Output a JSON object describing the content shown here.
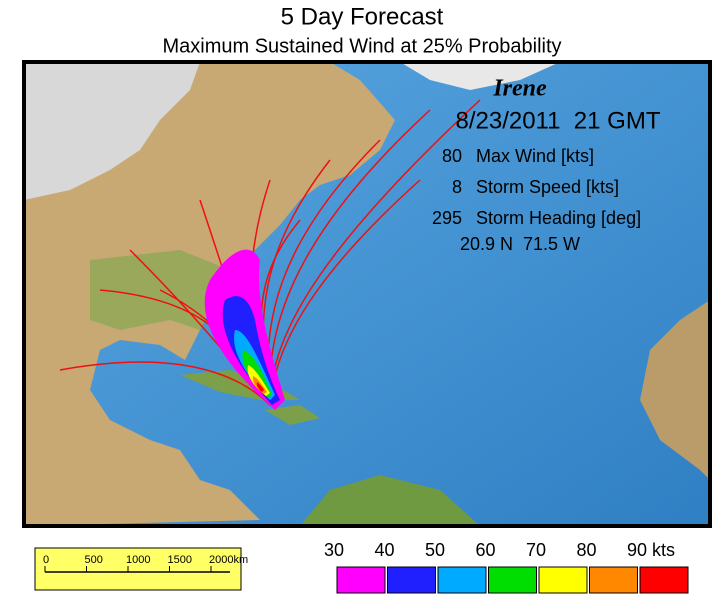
{
  "header": {
    "title": "5 Day Forecast",
    "subtitle": "Maximum Sustained Wind at 25% Probability"
  },
  "storm": {
    "name": "Irene",
    "date": "8/23/2011  21 GMT",
    "stats": [
      {
        "value": 80,
        "label": "Max Wind [kts]"
      },
      {
        "value": 8,
        "label": "Storm Speed [kts]"
      },
      {
        "value": 295,
        "label": "Storm Heading [deg]"
      }
    ],
    "position": "20.9 N  71.5 W"
  },
  "scale_bar": {
    "labels": [
      "0",
      "500",
      "1000",
      "1500",
      "2000km"
    ]
  },
  "wind_legend": {
    "ticks": [
      30,
      40,
      50,
      60,
      70,
      80,
      90
    ],
    "unit": "kts",
    "colors": [
      "#ff00ff",
      "#2020ff",
      "#00aaff",
      "#00dd00",
      "#ffff00",
      "#ff8800",
      "#ff0000"
    ]
  }
}
